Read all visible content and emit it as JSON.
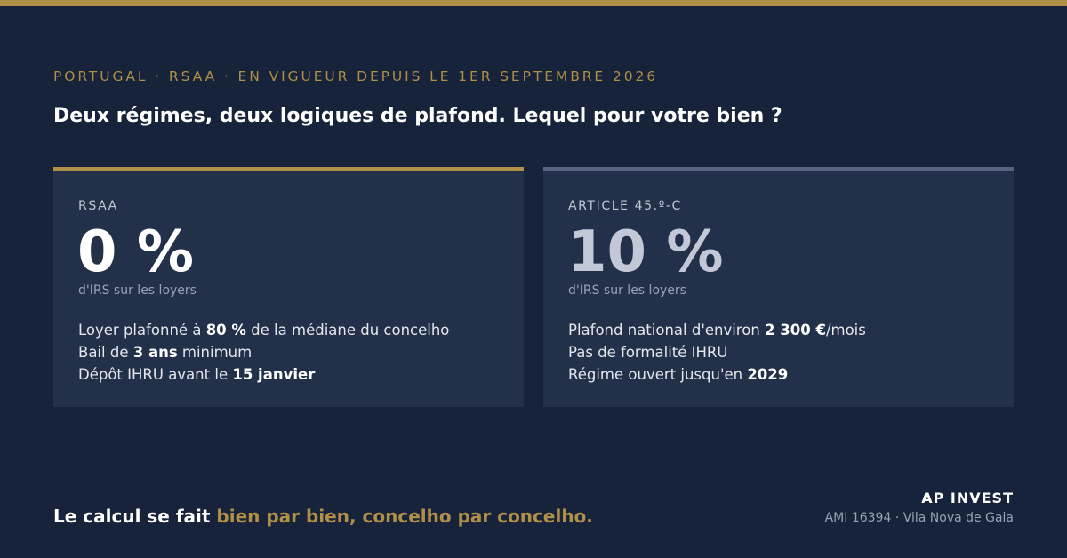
{
  "header": {
    "eyebrow": "PORTUGAL · RSAA · EN VIGUEUR DEPUIS LE 1ER SEPTEMBRE 2026",
    "title": "Deux régimes, deux logiques de plafond. Lequel pour votre bien ?"
  },
  "cards": [
    {
      "label": "RSAA",
      "rate": "0 %",
      "caption": "d'IRS sur les loyers",
      "lines": [
        {
          "before": "Loyer plafonné à ",
          "bold": "80 %",
          "after": " de la médiane du concelho"
        },
        {
          "before": "Bail de ",
          "bold": "3 ans",
          "after": " minimum"
        },
        {
          "before": "Dépôt IHRU avant le ",
          "bold": "15 janvier",
          "after": ""
        }
      ]
    },
    {
      "label": "ARTICLE 45.º-C",
      "rate": "10 %",
      "caption": "d'IRS sur les loyers",
      "lines": [
        {
          "before": "Plafond national d'environ ",
          "bold": "2 300 €",
          "after": "/mois"
        },
        {
          "before": "Pas de formalité IHRU",
          "bold": "",
          "after": ""
        },
        {
          "before": "Régime ouvert jusqu'en ",
          "bold": "2029",
          "after": ""
        }
      ]
    }
  ],
  "footer": {
    "text_plain": "Le calcul se fait ",
    "text_accent": "bien par bien, concelho par concelho.",
    "brand_name": "AP INVEST",
    "brand_sub": "AMI 16394 · Vila Nova de Gaia"
  },
  "colors": {
    "background": "#17233a",
    "card": "#22304a",
    "accent_gold": "#b08f48",
    "accent_slate": "#56627f"
  }
}
